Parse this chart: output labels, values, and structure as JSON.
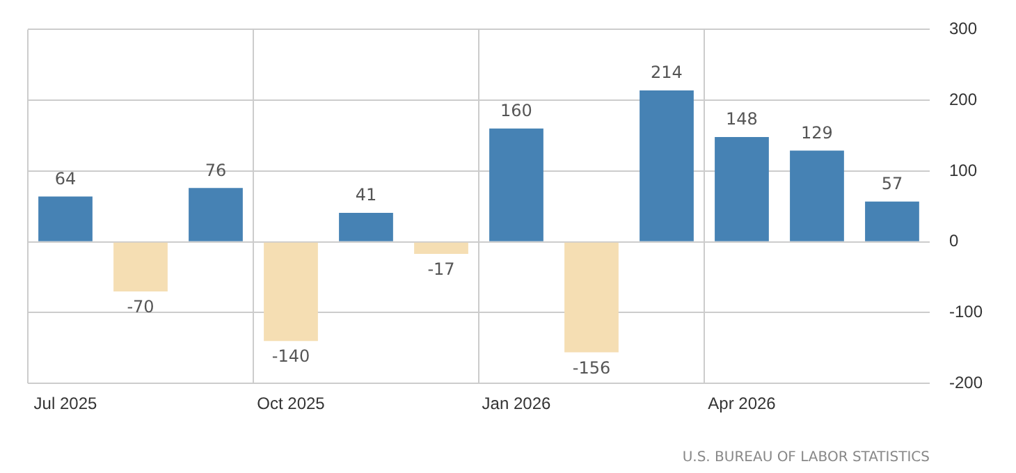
{
  "chart_data": {
    "type": "bar",
    "categories": [
      "Jul 2025",
      null,
      null,
      "Oct 2025",
      null,
      null,
      "Jan 2026",
      null,
      null,
      "Apr 2026",
      null,
      null
    ],
    "values": [
      64,
      -70,
      76,
      -140,
      41,
      -17,
      160,
      -156,
      214,
      148,
      129,
      57
    ],
    "colors": [
      "#4682b4",
      "#f5deb3",
      "#4682b4",
      "#f5deb3",
      "#4682b4",
      "#f5deb3",
      "#4682b4",
      "#f5deb3",
      "#4682b4",
      "#4682b4",
      "#4682b4",
      "#4682b4"
    ],
    "ylim": [
      -200,
      300
    ],
    "yticks": [
      -200,
      -100,
      0,
      100,
      200,
      300
    ],
    "grid": true,
    "legend": false,
    "data_labels": true,
    "annotations": [
      "U.S. BUREAU OF LABOR STATISTICS"
    ]
  }
}
